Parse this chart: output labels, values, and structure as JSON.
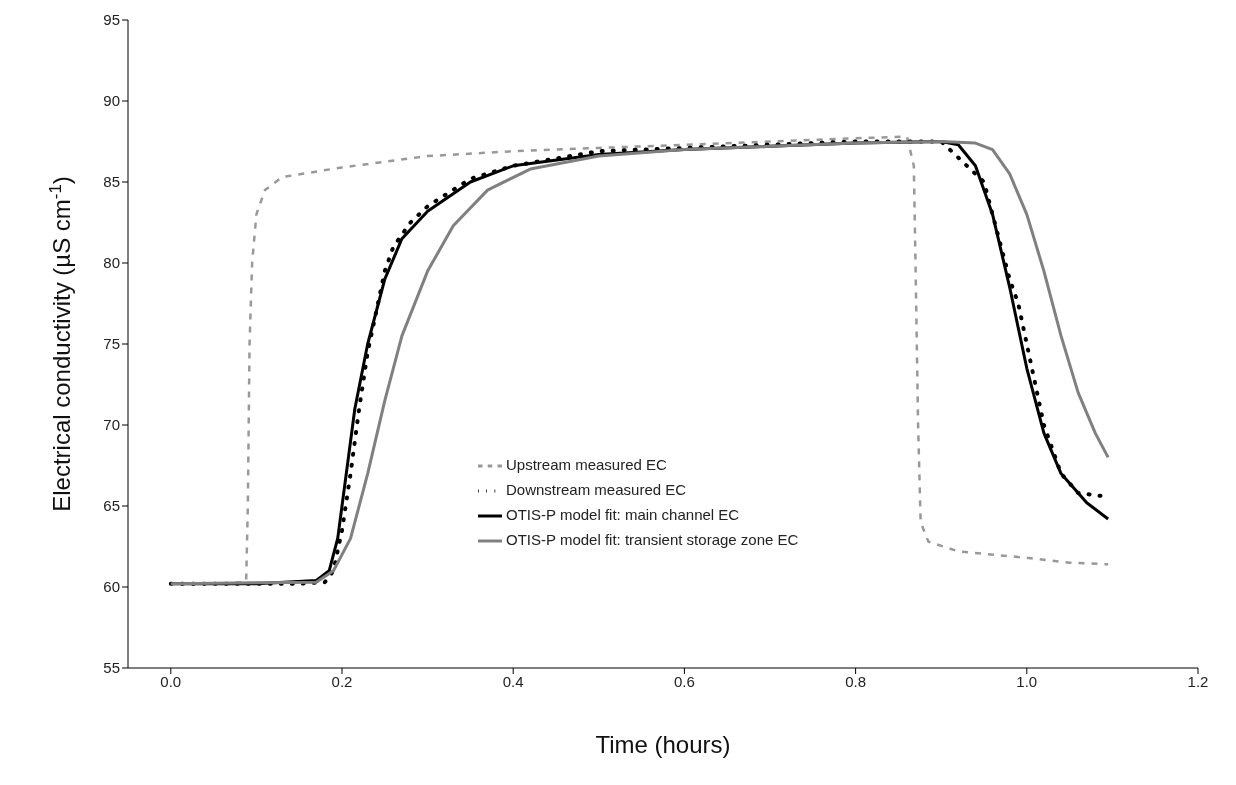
{
  "chart_data": {
    "type": "line",
    "xlabel": "Time (hours)",
    "ylabel": "Electrical conductivity (µS cm$^{-1}$)",
    "xlim": [
      -0.05,
      1.2
    ],
    "xticks": [
      {
        "value": 0,
        "label": "0.0"
      },
      0.2,
      0.4,
      0.6,
      0.8,
      {
        "value": 1,
        "label": "1.0"
      },
      1.2
    ],
    "ylim": [
      55,
      95
    ],
    "yticks": [
      55,
      60,
      65,
      70,
      75,
      80,
      85,
      90,
      95
    ],
    "grid": false,
    "legend": "bottom right",
    "series": [
      {
        "name": "Upstream measured EC",
        "color": "#999999",
        "line_style": "dashed",
        "x": [
          0,
          0.05,
          0.088,
          0.09,
          0.092,
          0.095,
          0.1,
          0.11,
          0.13,
          0.2,
          0.3,
          0.4,
          0.5,
          0.6,
          0.7,
          0.8,
          0.86,
          0.868,
          0.87,
          0.873,
          0.876,
          0.885,
          0.92,
          1.0,
          1.05,
          1.095
        ],
        "values": [
          60.2,
          60.2,
          60.3,
          65,
          75,
          80,
          83,
          84.5,
          85.3,
          85.9,
          86.6,
          86.9,
          87.1,
          87.3,
          87.5,
          87.7,
          87.8,
          86,
          80,
          70,
          64,
          62.8,
          62.2,
          61.8,
          61.5,
          61.4
        ]
      },
      {
        "name": "Downstream measured EC",
        "color": "#000000",
        "line_style": "dotted",
        "x": [
          0,
          0.05,
          0.1,
          0.15,
          0.18,
          0.19,
          0.2,
          0.21,
          0.22,
          0.23,
          0.24,
          0.25,
          0.26,
          0.28,
          0.3,
          0.35,
          0.4,
          0.5,
          0.6,
          0.7,
          0.8,
          0.9,
          0.95,
          0.97,
          0.98,
          0.99,
          1.0,
          1.02,
          1.04,
          1.06,
          1.09
        ],
        "values": [
          60.2,
          60.2,
          60.2,
          60.2,
          60.3,
          61,
          63.5,
          67,
          71,
          74.5,
          77,
          79.5,
          81,
          82.5,
          83.5,
          85.2,
          86,
          86.9,
          87.1,
          87.3,
          87.5,
          87.5,
          85,
          81,
          79,
          77.5,
          75,
          70,
          67,
          65.8,
          65.6
        ]
      },
      {
        "name": "OTIS-P model fit: main channel EC",
        "color": "#000000",
        "line_style": "solid",
        "x": [
          0,
          0.1,
          0.17,
          0.185,
          0.195,
          0.205,
          0.215,
          0.23,
          0.25,
          0.27,
          0.3,
          0.35,
          0.4,
          0.5,
          0.6,
          0.7,
          0.8,
          0.9,
          0.92,
          0.94,
          0.96,
          0.98,
          1.0,
          1.02,
          1.04,
          1.07,
          1.095
        ],
        "values": [
          60.2,
          60.2,
          60.4,
          61,
          63,
          67,
          71,
          75,
          79,
          81.5,
          83.2,
          85,
          86,
          86.7,
          87,
          87.2,
          87.4,
          87.5,
          87.3,
          86,
          83,
          78.5,
          73.5,
          69.5,
          67,
          65.2,
          64.2
        ]
      },
      {
        "name": "OTIS-P model fit: transient storage zone EC",
        "color": "#808080",
        "line_style": "solid",
        "x": [
          0,
          0.17,
          0.19,
          0.21,
          0.23,
          0.25,
          0.27,
          0.3,
          0.33,
          0.37,
          0.42,
          0.5,
          0.6,
          0.7,
          0.8,
          0.9,
          0.94,
          0.96,
          0.98,
          1.0,
          1.02,
          1.04,
          1.06,
          1.08,
          1.095
        ],
        "values": [
          60.2,
          60.3,
          61,
          63,
          67,
          71.5,
          75.5,
          79.5,
          82.3,
          84.5,
          85.8,
          86.6,
          87,
          87.2,
          87.4,
          87.5,
          87.4,
          87,
          85.5,
          83,
          79.5,
          75.5,
          72,
          69.5,
          68
        ]
      }
    ]
  }
}
